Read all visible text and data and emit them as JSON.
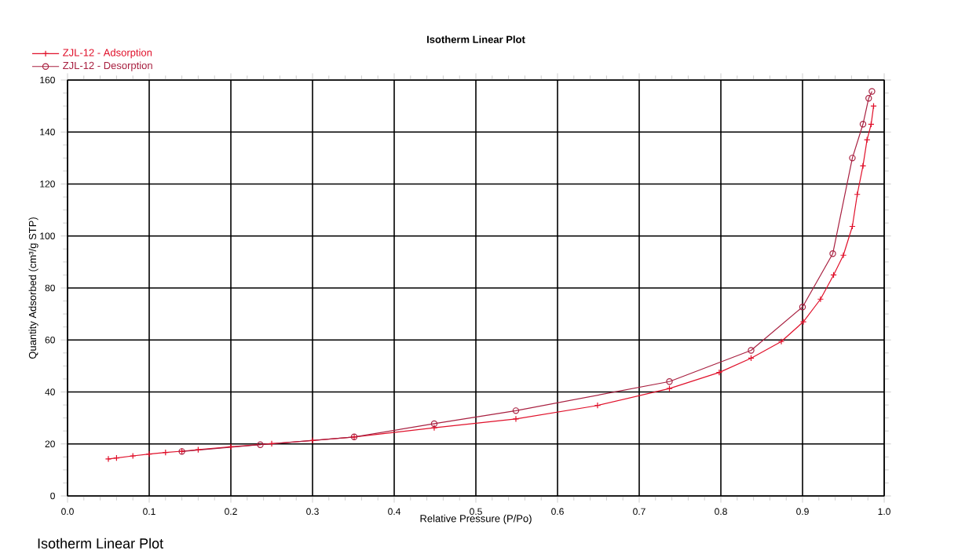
{
  "chart_data": {
    "type": "line",
    "title": "Isotherm Linear Plot",
    "xlabel": "Relative Pressure (P/Po)",
    "ylabel": "Quantity Adsorbed (cm³/g STP)",
    "annotations": [
      "Isotherm Linear Plot"
    ],
    "xlim": [
      0,
      1
    ],
    "ylim": [
      0,
      160
    ],
    "xticks": [
      {
        "value": 0,
        "label": "0.0"
      },
      {
        "value": 0.1,
        "label": "0.1"
      },
      {
        "value": 0.2,
        "label": "0.2"
      },
      {
        "value": 0.3,
        "label": "0.3"
      },
      {
        "value": 0.4,
        "label": "0.4"
      },
      {
        "value": 0.5,
        "label": "0.5"
      },
      {
        "value": 0.6,
        "label": "0.6"
      },
      {
        "value": 0.7,
        "label": "0.7"
      },
      {
        "value": 0.8,
        "label": "0.8"
      },
      {
        "value": 0.9,
        "label": "0.9"
      },
      {
        "value": 1,
        "label": "1.0"
      }
    ],
    "yticks": [
      0,
      20,
      40,
      60,
      80,
      100,
      120,
      140,
      160
    ],
    "grid": true,
    "legend": "top left",
    "line_style": "solid",
    "series": [
      {
        "name": "ZJL-12 - Adsorption",
        "color": "#e0102a",
        "marker": "cross",
        "x": [
          0.05,
          0.06,
          0.08,
          0.1,
          0.12,
          0.14,
          0.16,
          0.2,
          0.25,
          0.3,
          0.351,
          0.449,
          0.549,
          0.649,
          0.737,
          0.798,
          0.837,
          0.874,
          0.901,
          0.922,
          0.938,
          0.95,
          0.961,
          0.967,
          0.974,
          0.979,
          0.984,
          0.987
        ],
        "values": [
          14.2,
          14.6,
          15.4,
          16.1,
          16.7,
          17.2,
          17.8,
          18.9,
          20.1,
          21.3,
          22.7,
          26.2,
          29.6,
          34.8,
          41.3,
          47.5,
          53,
          59.4,
          67,
          75.7,
          85,
          92.6,
          103.7,
          116,
          127,
          137,
          143,
          150
        ]
      },
      {
        "name": "ZJL-12 - Desorption",
        "color": "#a82040",
        "marker": "circle",
        "x": [
          0.14,
          0.236,
          0.351,
          0.449,
          0.549,
          0.737,
          0.837,
          0.9,
          0.937,
          0.961,
          0.974,
          0.981,
          0.985
        ],
        "values": [
          17.1,
          19.7,
          22.7,
          27.8,
          32.8,
          44,
          56,
          72.7,
          93.2,
          130,
          143,
          153,
          155.6
        ]
      }
    ]
  }
}
